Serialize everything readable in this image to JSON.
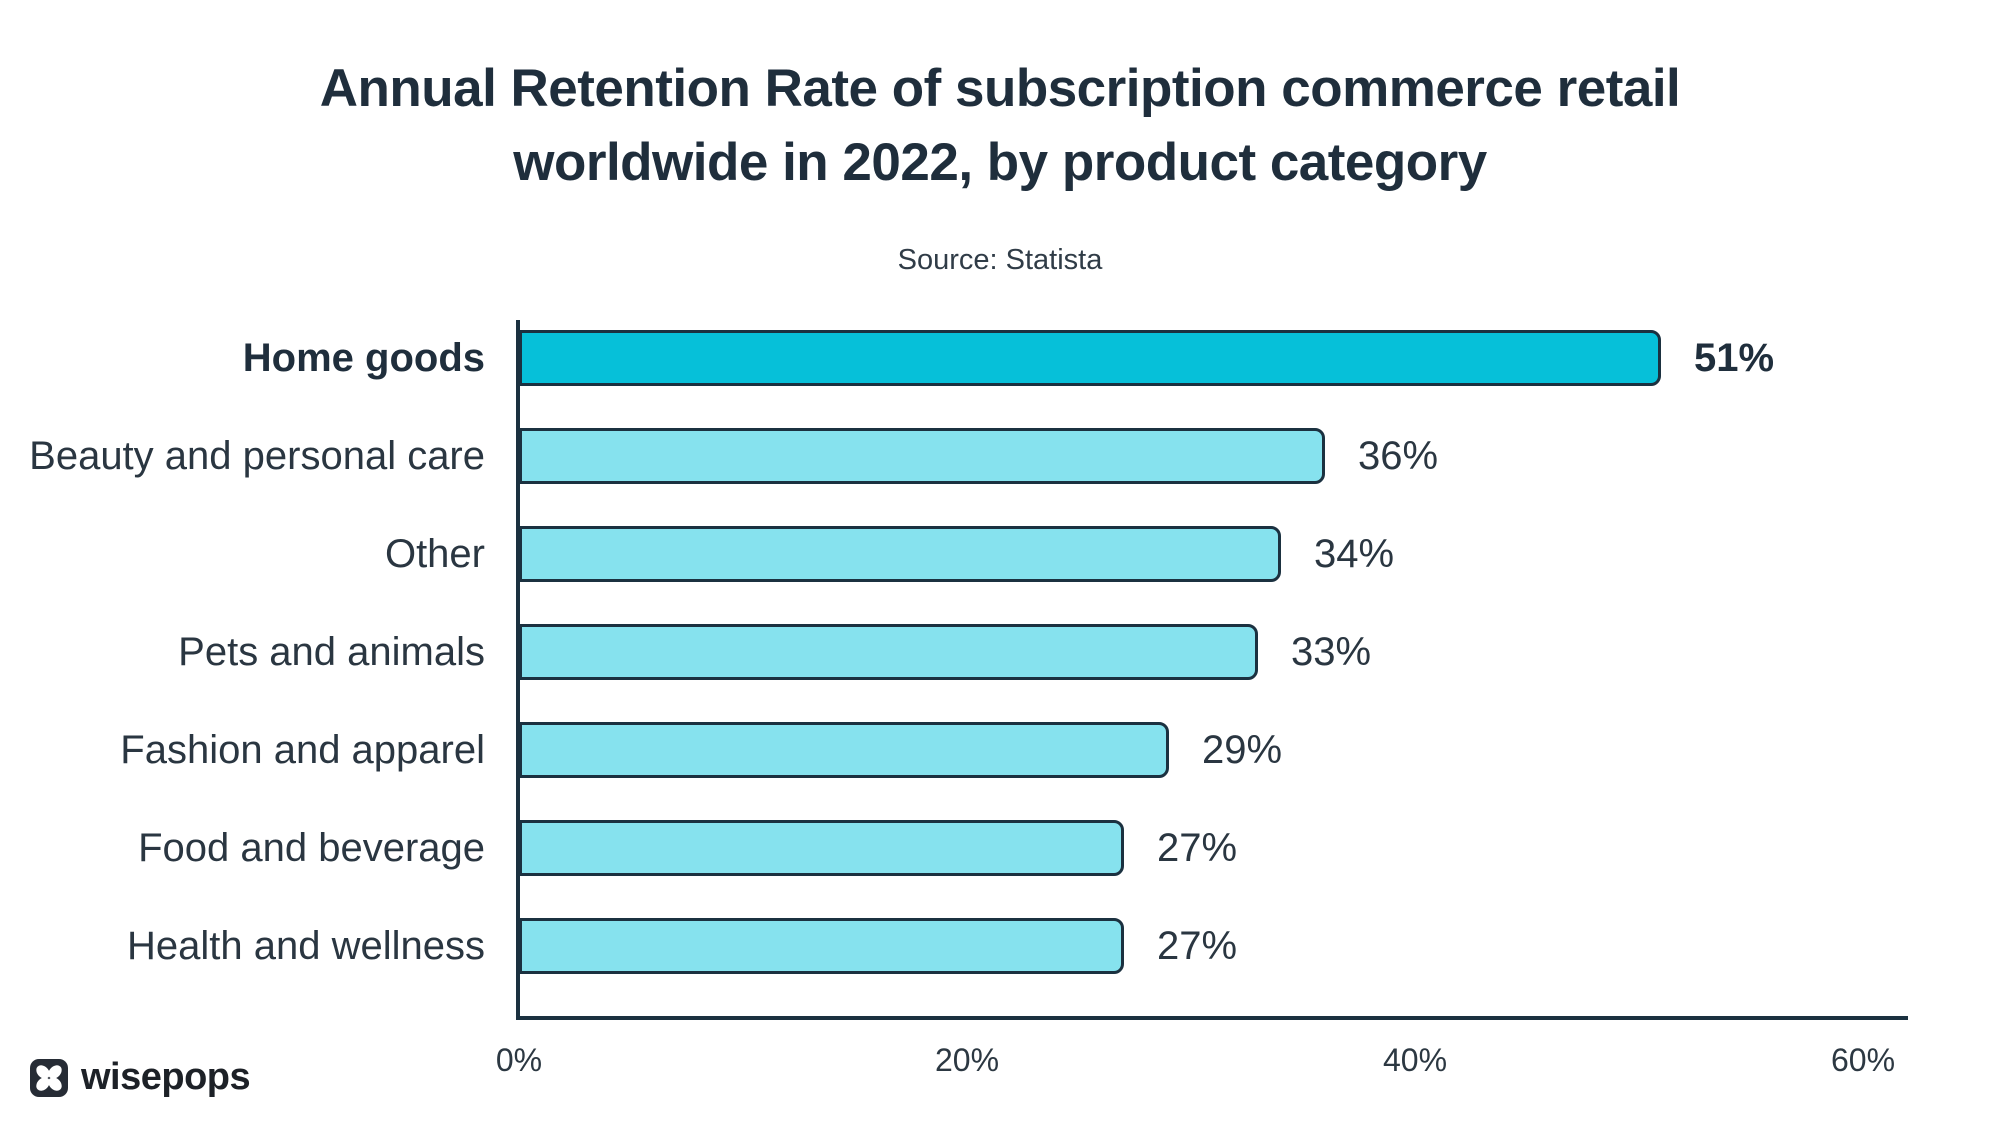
{
  "title": "Annual Retention Rate of subscription commerce retail\nworldwide in 2022, by product category",
  "source": "Source: Statista",
  "brand": "wisepops",
  "chart_data": {
    "type": "bar",
    "orientation": "horizontal",
    "title": "Annual Retention Rate of subscription commerce retail worldwide in 2022, by product category",
    "subtitle": "Source: Statista",
    "categories": [
      "Home goods",
      "Beauty and personal care",
      "Other",
      "Pets and animals",
      "Fashion and apparel",
      "Food and beverage",
      "Health and wellness"
    ],
    "values": [
      51,
      36,
      34,
      33,
      29,
      27,
      27
    ],
    "value_labels": [
      "51%",
      "36%",
      "34%",
      "33%",
      "29%",
      "27%",
      "27%"
    ],
    "x_ticks": [
      {
        "value": 0,
        "label": "0%"
      },
      {
        "value": 20,
        "label": "20%"
      },
      {
        "value": 40,
        "label": "40%"
      },
      {
        "value": 60,
        "label": "60%"
      }
    ],
    "xlim": [
      0,
      60
    ],
    "xlabel": "",
    "ylabel": "",
    "grid": false,
    "legend": null,
    "highlight_index": 0,
    "colors": {
      "bar_fill": "#86e2ee",
      "highlight_fill": "#06c0d9",
      "outline": "#1b3140",
      "text": "#1f2e3c"
    }
  }
}
